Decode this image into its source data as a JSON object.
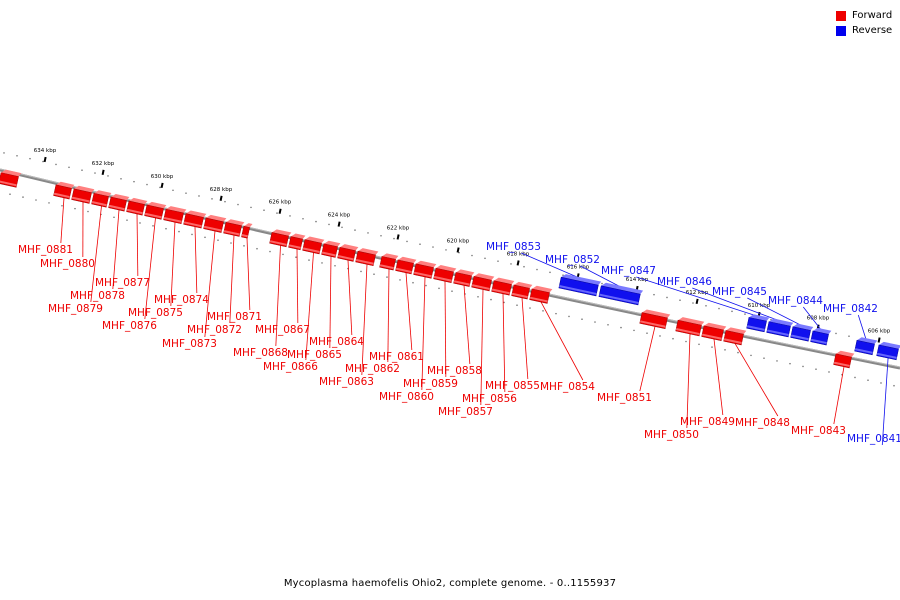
{
  "caption": "Mycoplasma haemofelis Ohio2, complete genome. - 0..1155937",
  "legend": [
    {
      "label": "Forward",
      "color": "#ee0000"
    },
    {
      "label": "Reverse",
      "color": "#0000ee"
    }
  ],
  "colors": {
    "forward": "#ee0000",
    "reverse": "#1010ee",
    "backbone": "#888888"
  },
  "ticks": [
    "634 kbp",
    "632 kbp",
    "630 kbp",
    "628 kbp",
    "626 kbp",
    "624 kbp",
    "622 kbp",
    "620 kbp",
    "618 kbp",
    "616 kbp",
    "614 kbp",
    "612 kbp",
    "610 kbp",
    "608 kbp",
    "606 kbp"
  ],
  "genes": [
    {
      "label": "",
      "strand": "forward"
    },
    {
      "label": "MHF_0881",
      "strand": "forward"
    },
    {
      "label": "MHF_0880",
      "strand": "forward"
    },
    {
      "label": "MHF_0879",
      "strand": "forward"
    },
    {
      "label": "MHF_0878",
      "strand": "forward"
    },
    {
      "label": "MHF_0877",
      "strand": "forward"
    },
    {
      "label": "MHF_0876",
      "strand": "forward"
    },
    {
      "label": "MHF_0875",
      "strand": "forward"
    },
    {
      "label": "MHF_0874",
      "strand": "forward"
    },
    {
      "label": "MHF_0873",
      "strand": "forward"
    },
    {
      "label": "MHF_0872",
      "strand": "forward"
    },
    {
      "label": "MHF_0871",
      "strand": "forward"
    },
    {
      "label": "MHF_0868",
      "strand": "forward"
    },
    {
      "label": "MHF_0867",
      "strand": "forward"
    },
    {
      "label": "MHF_0866",
      "strand": "forward"
    },
    {
      "label": "MHF_0865",
      "strand": "forward"
    },
    {
      "label": "MHF_0864",
      "strand": "forward"
    },
    {
      "label": "MHF_0863",
      "strand": "forward"
    },
    {
      "label": "MHF_0862",
      "strand": "forward"
    },
    {
      "label": "MHF_0861",
      "strand": "forward"
    },
    {
      "label": "MHF_0860",
      "strand": "forward"
    },
    {
      "label": "MHF_0859",
      "strand": "forward"
    },
    {
      "label": "MHF_0858",
      "strand": "forward"
    },
    {
      "label": "MHF_0857",
      "strand": "forward"
    },
    {
      "label": "MHF_0856",
      "strand": "forward"
    },
    {
      "label": "MHF_0855",
      "strand": "forward"
    },
    {
      "label": "MHF_0854",
      "strand": "forward"
    },
    {
      "label": "MHF_0853",
      "strand": "reverse"
    },
    {
      "label": "MHF_0852",
      "strand": "reverse"
    },
    {
      "label": "MHF_0851",
      "strand": "forward"
    },
    {
      "label": "MHF_0850",
      "strand": "forward"
    },
    {
      "label": "MHF_0849",
      "strand": "forward"
    },
    {
      "label": "MHF_0848",
      "strand": "forward"
    },
    {
      "label": "MHF_0847",
      "strand": "reverse"
    },
    {
      "label": "MHF_0846",
      "strand": "reverse"
    },
    {
      "label": "MHF_0845",
      "strand": "reverse"
    },
    {
      "label": "MHF_0844",
      "strand": "reverse"
    },
    {
      "label": "MHF_0843",
      "strand": "forward"
    },
    {
      "label": "MHF_0842",
      "strand": "reverse"
    },
    {
      "label": "MHF_0841",
      "strand": "reverse"
    }
  ]
}
